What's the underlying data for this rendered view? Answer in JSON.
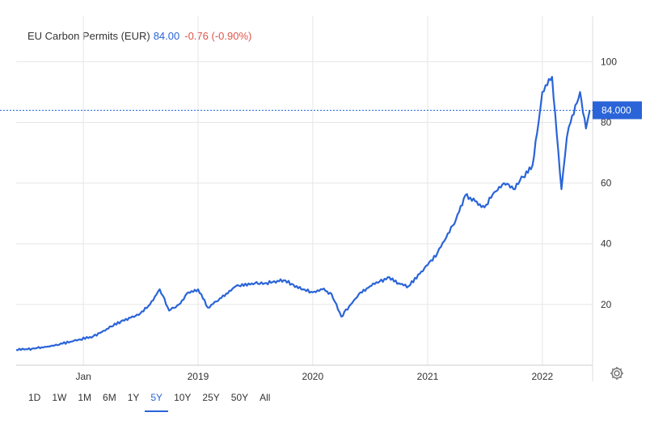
{
  "legend": {
    "name": "EU Carbon Permits (EUR)",
    "price": "84.00",
    "change": "-0.76 (-0.90%)"
  },
  "price_tag": "84.000",
  "ranges": [
    "1D",
    "1W",
    "1M",
    "6M",
    "1Y",
    "5Y",
    "10Y",
    "25Y",
    "50Y",
    "All"
  ],
  "active_range": "5Y",
  "settings_icon": "gear-icon",
  "colors": {
    "line": "#2a64d8",
    "negative": "#e0554a",
    "grid": "#e6e6e6"
  },
  "chart_data": {
    "type": "line",
    "title": "EU Carbon Permits (EUR)",
    "ylim": [
      0,
      115
    ],
    "y_ticks": [
      20,
      40,
      60,
      80,
      100
    ],
    "x_ticks": [
      "Jan",
      "2019",
      "2020",
      "2021",
      "2022"
    ],
    "grid": true,
    "last_value": 84.0,
    "series": [
      {
        "name": "EU Carbon Permits (EUR)",
        "x": [
          "2017-06",
          "2017-08",
          "2017-10",
          "2017-12",
          "2018-02",
          "2018-03",
          "2018-05",
          "2018-07",
          "2018-08",
          "2018-09",
          "2018-10",
          "2018-11",
          "2018-12",
          "2019-01",
          "2019-02",
          "2019-03",
          "2019-05",
          "2019-07",
          "2019-08",
          "2019-10",
          "2019-12",
          "2020-01",
          "2020-02",
          "2020-03",
          "2020-04",
          "2020-05",
          "2020-06",
          "2020-07",
          "2020-09",
          "2020-10",
          "2020-11",
          "2021-01",
          "2021-02",
          "2021-03",
          "2021-04",
          "2021-05",
          "2021-06",
          "2021-07",
          "2021-08",
          "2021-09",
          "2021-10",
          "2021-11",
          "2021-12",
          "2021-12-20",
          "2022-01",
          "2022-02",
          "2022-03-03",
          "2022-03-20",
          "2022-04",
          "2022-05",
          "2022-05-20",
          "2022-06"
        ],
        "values": [
          5,
          5.5,
          6.5,
          8,
          9.5,
          11,
          14.5,
          17,
          20,
          25,
          18,
          20,
          24,
          25,
          19,
          21,
          26,
          27,
          27,
          28,
          25,
          24,
          25,
          23.5,
          16,
          20,
          24,
          26,
          29,
          27,
          26,
          33,
          37,
          42,
          48,
          56,
          54,
          52,
          57,
          60,
          58,
          62,
          66,
          80,
          90,
          95,
          58,
          75,
          80,
          90,
          78,
          84
        ]
      }
    ]
  }
}
